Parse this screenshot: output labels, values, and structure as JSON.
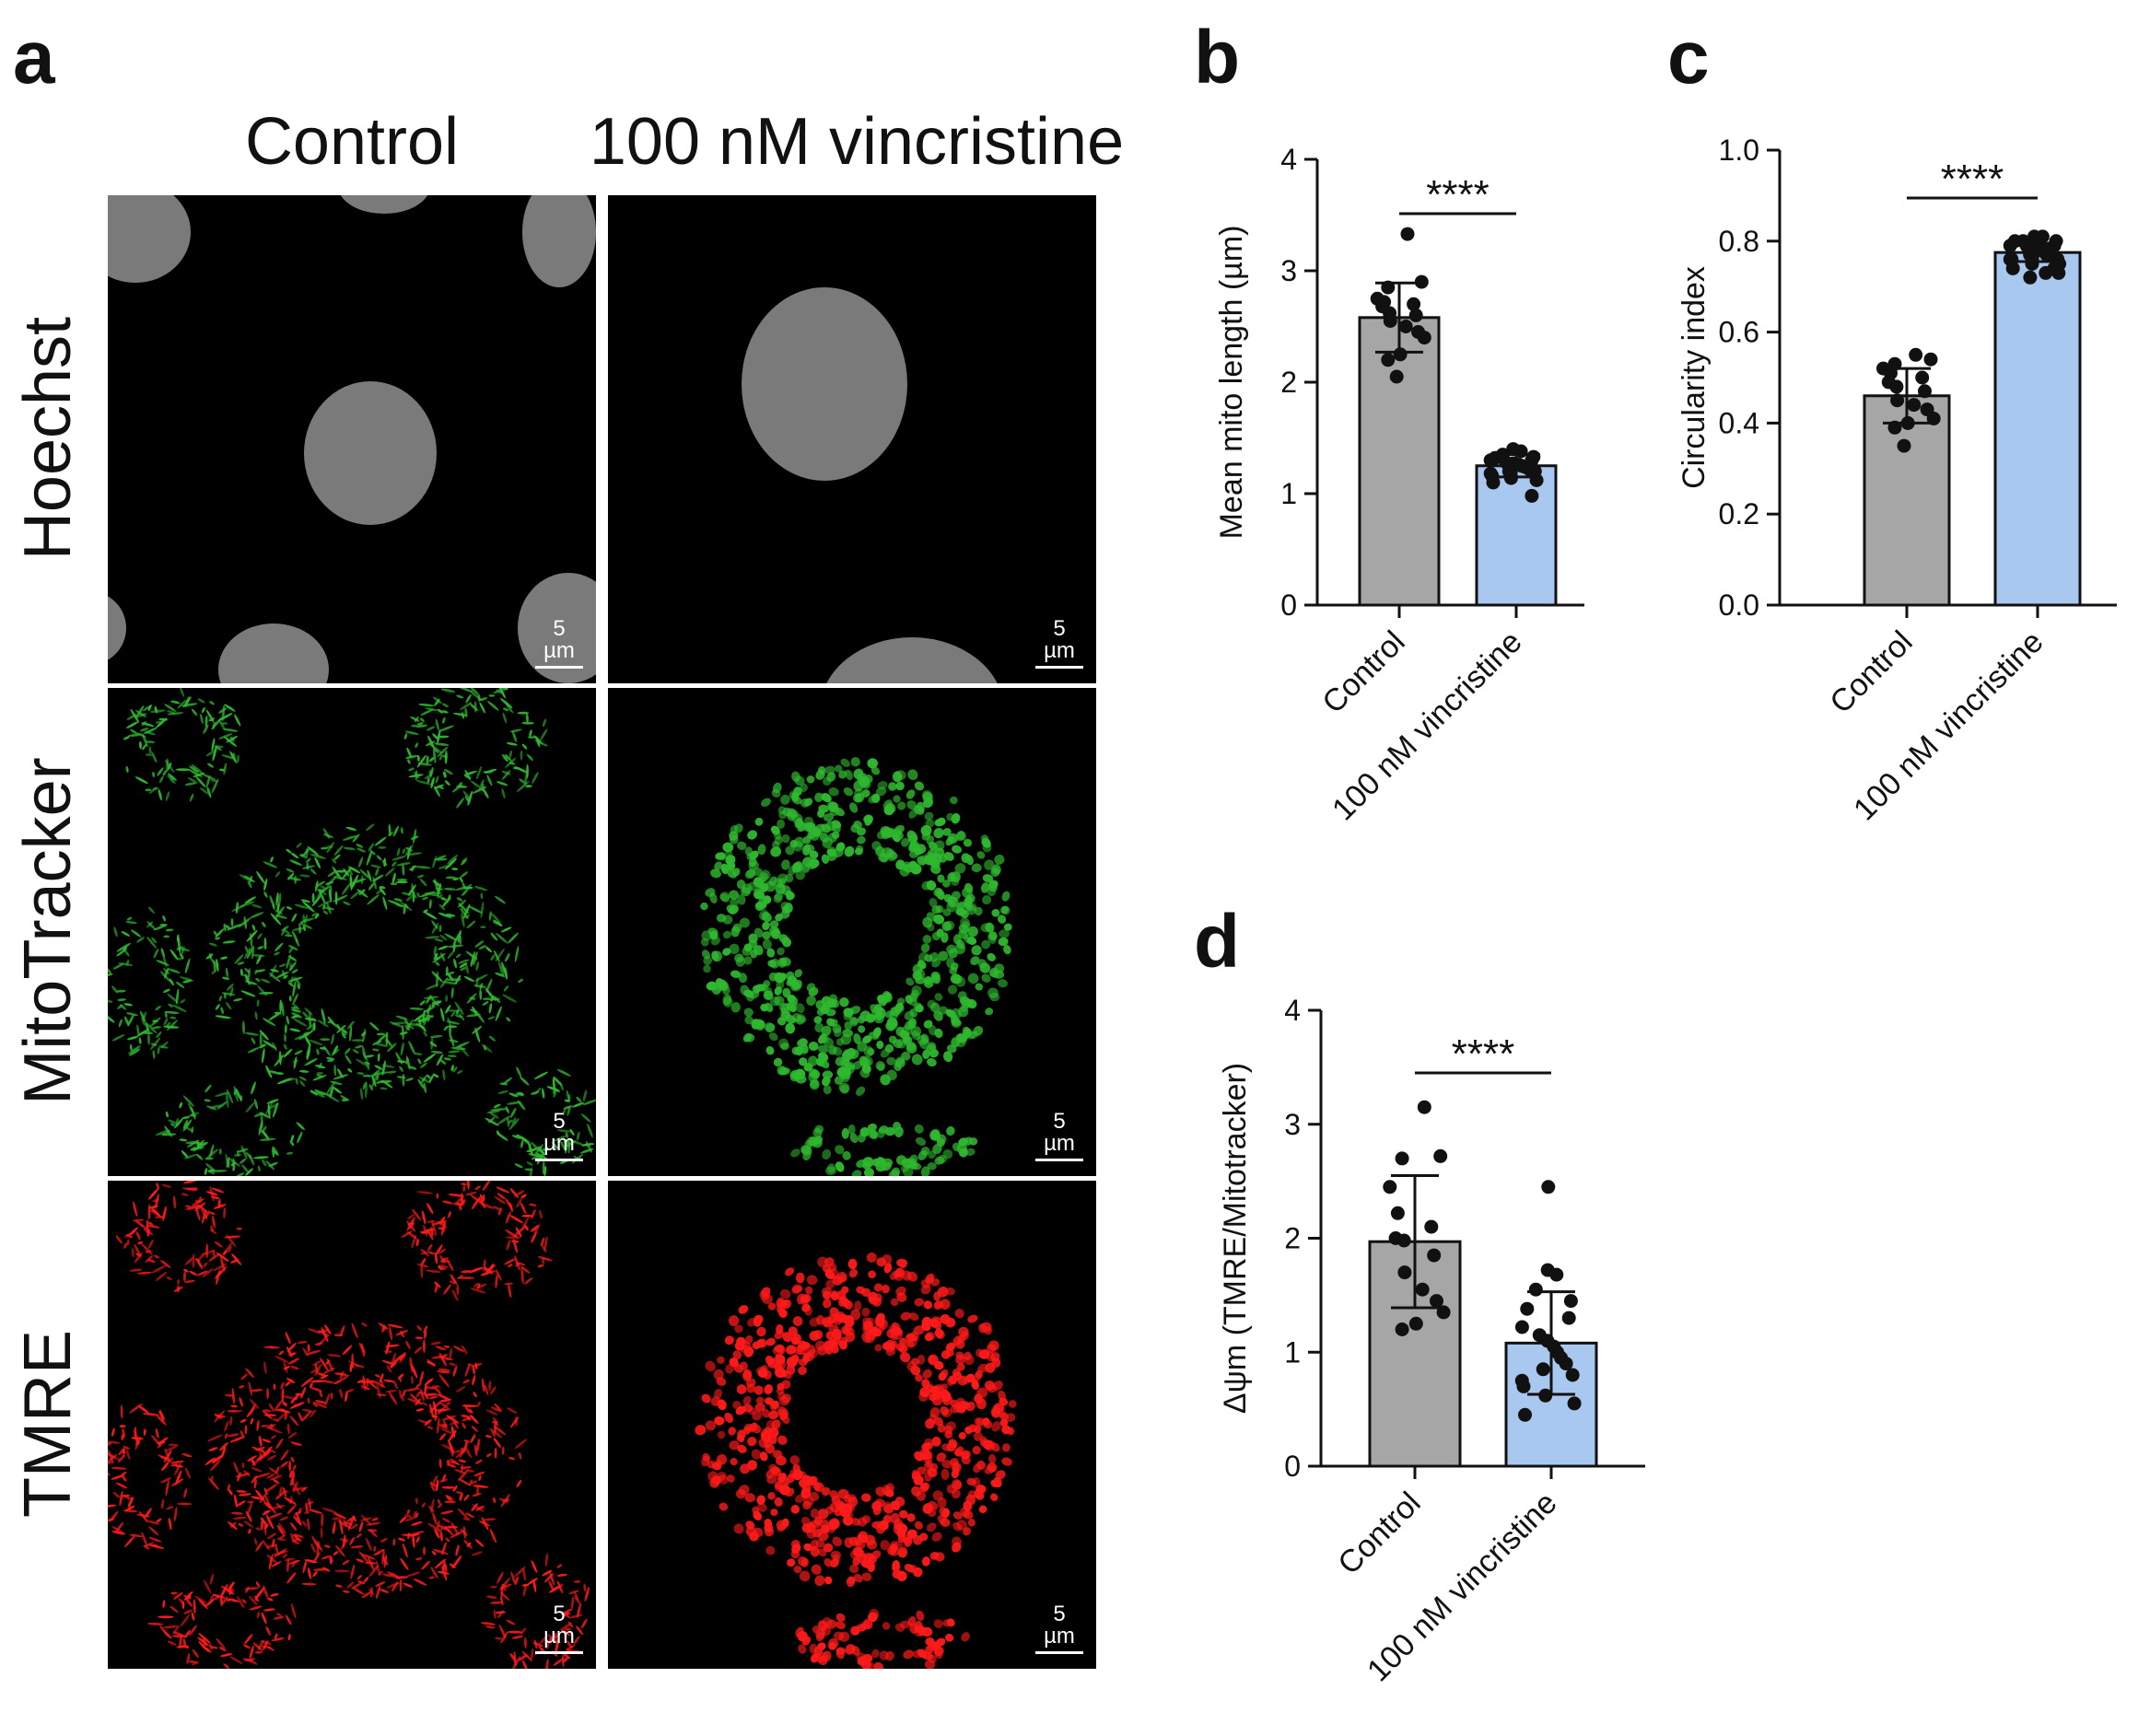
{
  "figure": {
    "panel_letters": {
      "a": "a",
      "b": "b",
      "c": "c",
      "d": "d"
    },
    "panel_a": {
      "columns": [
        "Control",
        "100 nM vincristine"
      ],
      "rows": [
        "Hoechst",
        "MitoTracker",
        "TMRE"
      ],
      "scale_bar": "5 µm",
      "channel_colors": {
        "Hoechst": "#bfbfbf",
        "MitoTracker": "#2fb82f",
        "TMRE": "#ff1a1a"
      }
    }
  },
  "chart_data": [
    {
      "panel": "b",
      "type": "bar",
      "categories": [
        "Control",
        "100 nM vincristine"
      ],
      "ylabel": "Mean mito length (µm)",
      "xlabel": "",
      "ylim": [
        0,
        4
      ],
      "yticks": [
        0,
        1,
        2,
        3,
        4
      ],
      "bar_colors": [
        "#a6a6a6",
        "#a9c8f0"
      ],
      "means": [
        2.58,
        1.25
      ],
      "sd": [
        0.31,
        0.1
      ],
      "points": [
        [
          3.33,
          2.9,
          2.85,
          2.75,
          2.72,
          2.7,
          2.68,
          2.62,
          2.6,
          2.55,
          2.5,
          2.45,
          2.4,
          2.25,
          2.2,
          2.05
        ],
        [
          1.4,
          1.38,
          1.35,
          1.33,
          1.32,
          1.3,
          1.3,
          1.28,
          1.27,
          1.26,
          1.25,
          1.24,
          1.22,
          1.2,
          1.2,
          1.18,
          1.16,
          1.14,
          1.12,
          1.1,
          0.98
        ]
      ],
      "significance": "****"
    },
    {
      "panel": "c",
      "type": "bar",
      "categories": [
        "Control",
        "100 nM vincristine"
      ],
      "ylabel": "Circularity index",
      "xlabel": "",
      "ylim": [
        0,
        1.0
      ],
      "yticks": [
        0.0,
        0.2,
        0.4,
        0.6,
        0.8,
        1.0
      ],
      "bar_colors": [
        "#a6a6a6",
        "#a9c8f0"
      ],
      "means": [
        0.46,
        0.775
      ],
      "sd": [
        0.06,
        0.02
      ],
      "points": [
        [
          0.55,
          0.54,
          0.53,
          0.52,
          0.51,
          0.5,
          0.49,
          0.48,
          0.47,
          0.45,
          0.44,
          0.43,
          0.41,
          0.4,
          0.39,
          0.35
        ],
        [
          0.81,
          0.81,
          0.8,
          0.8,
          0.8,
          0.79,
          0.79,
          0.79,
          0.78,
          0.78,
          0.78,
          0.77,
          0.77,
          0.77,
          0.76,
          0.76,
          0.76,
          0.75,
          0.75,
          0.74,
          0.74,
          0.73,
          0.73,
          0.72
        ]
      ],
      "significance": "****"
    },
    {
      "panel": "d",
      "type": "bar",
      "categories": [
        "Control",
        "100 nM vincristine"
      ],
      "ylabel": "Δψm (TMRE/Mitotracker)",
      "xlabel": "",
      "ylim": [
        0,
        4
      ],
      "yticks": [
        0,
        1,
        2,
        3,
        4
      ],
      "bar_colors": [
        "#a6a6a6",
        "#a9c8f0"
      ],
      "means": [
        1.97,
        1.08
      ],
      "sd": [
        0.58,
        0.45
      ],
      "points": [
        [
          3.15,
          2.72,
          2.7,
          2.45,
          2.22,
          2.1,
          2.0,
          1.98,
          1.85,
          1.7,
          1.55,
          1.45,
          1.35,
          1.25,
          1.2
        ],
        [
          2.45,
          1.72,
          1.68,
          1.55,
          1.45,
          1.38,
          1.3,
          1.22,
          1.15,
          1.1,
          1.05,
          1.0,
          0.95,
          0.9,
          0.85,
          0.8,
          0.75,
          0.7,
          0.62,
          0.55,
          0.45
        ]
      ],
      "significance": "****"
    }
  ]
}
